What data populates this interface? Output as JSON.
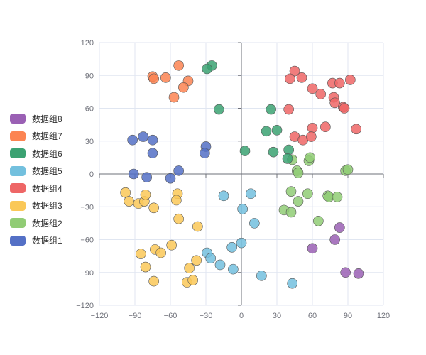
{
  "chart_data": {
    "type": "scatter",
    "title": "",
    "xlabel": "",
    "ylabel": "",
    "xlim": [
      -120,
      120
    ],
    "ylim": [
      -120,
      120
    ],
    "xticks": [
      -120,
      -90,
      -60,
      -30,
      0,
      30,
      60,
      90,
      120
    ],
    "yticks": [
      -120,
      -90,
      -60,
      -30,
      0,
      30,
      60,
      90,
      120
    ],
    "grid": true,
    "legend_position": "left",
    "legend_order": [
      "数据组8",
      "数据组7",
      "数据组6",
      "数据组5",
      "数据组4",
      "数据组3",
      "数据组2",
      "数据组1"
    ],
    "series": [
      {
        "name": "数据组1",
        "color": "#5470c6",
        "points": [
          [
            -92,
            31
          ],
          [
            -83,
            34
          ],
          [
            -75,
            31
          ],
          [
            -75,
            19
          ],
          [
            -30,
            25
          ],
          [
            -31,
            19
          ],
          [
            -91,
            0
          ],
          [
            -80,
            -3
          ],
          [
            -60,
            -4
          ],
          [
            -53,
            3
          ]
        ]
      },
      {
        "name": "数据组2",
        "color": "#91cc75",
        "points": [
          [
            43,
            13
          ],
          [
            57,
            12
          ],
          [
            58,
            15
          ],
          [
            47,
            3
          ],
          [
            48,
            1
          ],
          [
            88,
            3
          ],
          [
            90,
            4
          ],
          [
            42,
            -16
          ],
          [
            56,
            -18
          ],
          [
            73,
            -20
          ],
          [
            74,
            -21
          ],
          [
            81,
            -21
          ],
          [
            48,
            -25
          ],
          [
            36,
            -33
          ],
          [
            42,
            -35
          ],
          [
            65,
            -43
          ]
        ]
      },
      {
        "name": "数据组3",
        "color": "#fac858",
        "points": [
          [
            -98,
            -17
          ],
          [
            -95,
            -25
          ],
          [
            -87,
            -27
          ],
          [
            -82,
            -25
          ],
          [
            -81,
            -19
          ],
          [
            -74,
            -31
          ],
          [
            -54,
            -18
          ],
          [
            -55,
            -24
          ],
          [
            -53,
            -41
          ],
          [
            -37,
            -48
          ],
          [
            -59,
            -65
          ],
          [
            -73,
            -69
          ],
          [
            -68,
            -72
          ],
          [
            -85,
            -73
          ],
          [
            -81,
            -85
          ],
          [
            -74,
            -98
          ],
          [
            -38,
            -79
          ],
          [
            -44,
            -86
          ],
          [
            -46,
            -99
          ],
          [
            -41,
            -97
          ]
        ]
      },
      {
        "name": "数据组4",
        "color": "#ee6666",
        "points": [
          [
            45,
            94
          ],
          [
            41,
            87
          ],
          [
            51,
            88
          ],
          [
            60,
            78
          ],
          [
            67,
            73
          ],
          [
            77,
            83
          ],
          [
            83,
            83
          ],
          [
            92,
            86
          ],
          [
            78,
            70
          ],
          [
            79,
            65
          ],
          [
            86,
            61
          ],
          [
            87,
            60
          ],
          [
            97,
            41
          ],
          [
            60,
            42
          ],
          [
            71,
            43
          ],
          [
            40,
            59
          ],
          [
            45,
            34
          ],
          [
            52,
            31
          ],
          [
            59,
            34
          ]
        ]
      },
      {
        "name": "数据组5",
        "color": "#73c0de",
        "points": [
          [
            -15,
            -20
          ],
          [
            8,
            -18
          ],
          [
            1,
            -32
          ],
          [
            11,
            -45
          ],
          [
            -29,
            -72
          ],
          [
            -26,
            -77
          ],
          [
            -18,
            -83
          ],
          [
            -8,
            -67
          ],
          [
            0,
            -63
          ],
          [
            -7,
            -87
          ],
          [
            17,
            -93
          ],
          [
            43,
            -100
          ]
        ]
      },
      {
        "name": "数据组6",
        "color": "#3ba272",
        "points": [
          [
            -25,
            99
          ],
          [
            -29,
            96
          ],
          [
            -19,
            59
          ],
          [
            3,
            21
          ],
          [
            25,
            59
          ],
          [
            21,
            39
          ],
          [
            30,
            40
          ],
          [
            27,
            20
          ],
          [
            40,
            22
          ],
          [
            39,
            14
          ]
        ]
      },
      {
        "name": "数据组7",
        "color": "#fc8452",
        "points": [
          [
            -53,
            99
          ],
          [
            -75,
            89
          ],
          [
            -74,
            87
          ],
          [
            -64,
            88
          ],
          [
            -45,
            85
          ],
          [
            -49,
            79
          ],
          [
            -57,
            70
          ]
        ]
      },
      {
        "name": "数据组8",
        "color": "#9a60b4",
        "points": [
          [
            83,
            -49
          ],
          [
            79,
            -60
          ],
          [
            60,
            -68
          ],
          [
            88,
            -90
          ],
          [
            99,
            -91
          ]
        ]
      }
    ]
  }
}
